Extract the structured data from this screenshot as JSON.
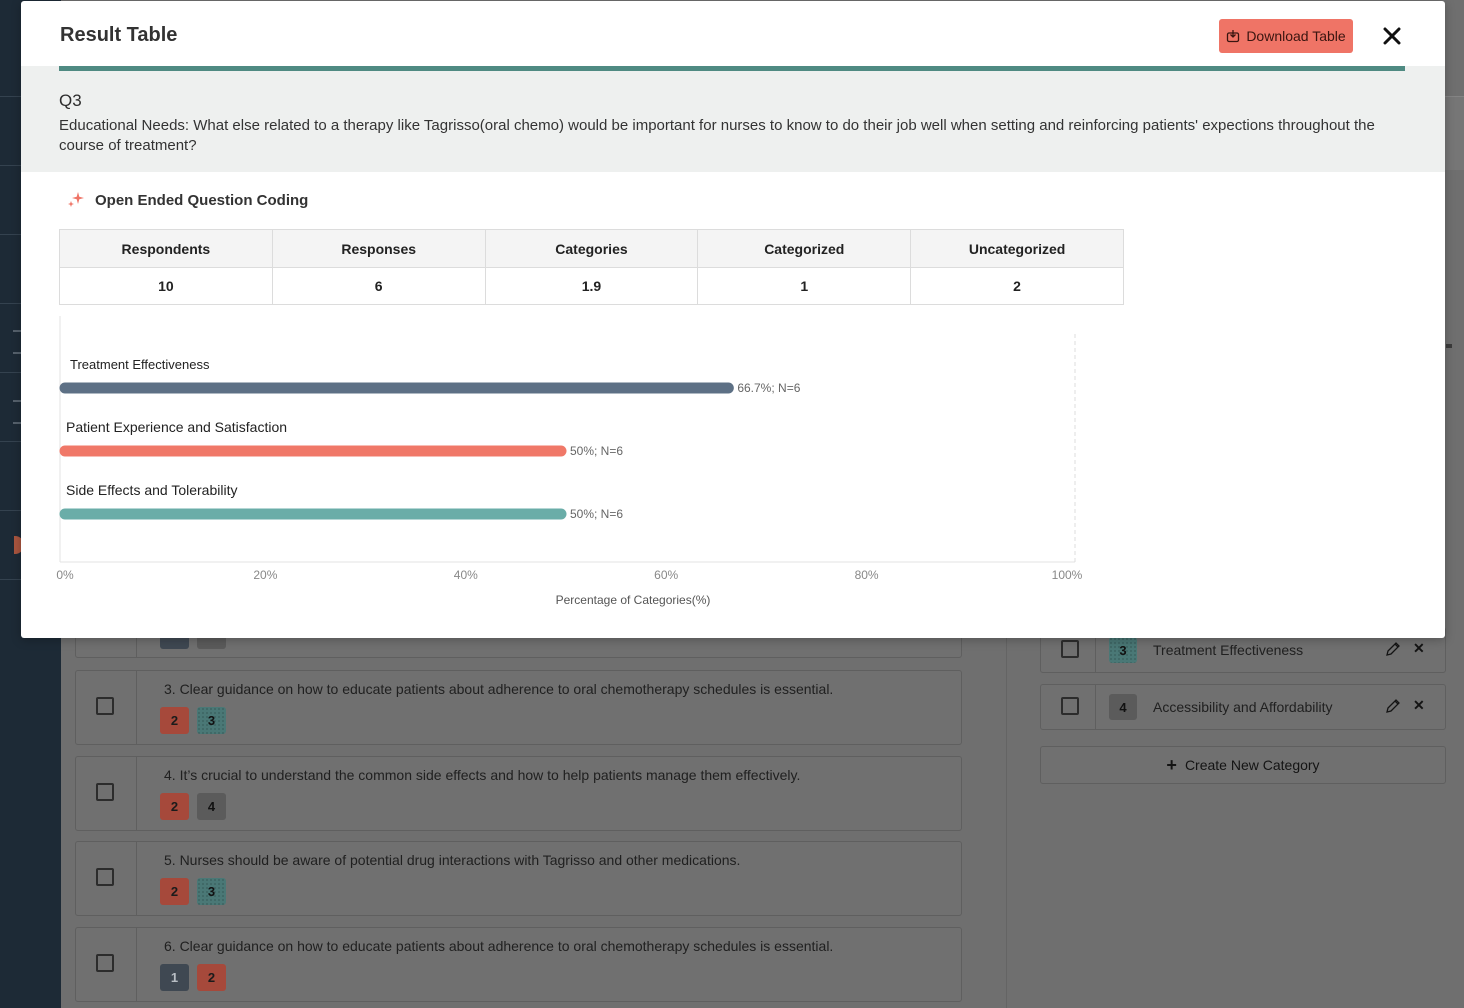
{
  "background": {
    "responses": [
      {
        "text": "3. Clear guidance on how to educate patients about adherence to oral chemotherapy schedules is essential.",
        "tags": [
          "2",
          "3"
        ]
      },
      {
        "text": "4. It’s crucial to understand the common side effects and how to help patients manage them effectively.",
        "tags": [
          "2",
          "4"
        ]
      },
      {
        "text": "5. Nurses should be aware of potential drug interactions with Tagrisso and other medications.",
        "tags": [
          "2",
          "3"
        ]
      },
      {
        "text": "6. Clear guidance on how to educate patients about adherence to oral chemotherapy schedules is essential.",
        "tags": [
          "1",
          "2"
        ]
      }
    ],
    "categories": [
      {
        "number": "3",
        "name": "Treatment Effectiveness"
      },
      {
        "number": "4",
        "name": "Accessibility and Affordability"
      }
    ],
    "create_category_label": "Create New Category"
  },
  "modal": {
    "title": "Result Table",
    "download_label": "Download Table",
    "question_label": "Q3",
    "question_text": "Educational Needs: What else related to a therapy like Tagrisso(oral chemo) would be important for nurses to know to do their job well when setting and reinforcing patients' expections throughout the course of treatment?",
    "section_title": "Open Ended Question Coding",
    "stats": {
      "headers": [
        "Respondents",
        "Responses",
        "Categories",
        "Categorized",
        "Uncategorized"
      ],
      "values": [
        "10",
        "6",
        "1.9",
        "1",
        "2"
      ]
    }
  },
  "colors": {
    "accent_teal": "#4f8a82",
    "download_button": "#ef7466",
    "series": [
      "#5d7085",
      "#f07868",
      "#6aada8"
    ],
    "tag_1": "#3f4852",
    "tag_2": "#a6493b",
    "tag_3": "#4a7876",
    "tag_4": "#5b5b5b"
  },
  "icons": {
    "download": "download-icon",
    "close": "close-icon",
    "sparkle": "sparkle-icon",
    "edit": "pencil-icon",
    "delete": "x-icon",
    "add": "plus-icon"
  },
  "chart_data": {
    "type": "bar",
    "orientation": "horizontal",
    "categories": [
      "Treatment Effectiveness",
      "Patient Experience and Satisfaction",
      "Side Effects and Tolerability"
    ],
    "values": [
      66.7,
      50,
      50
    ],
    "data_labels": [
      "66.7%; N=6",
      "50%; N=6",
      "50%; N=6"
    ],
    "xlabel": "Percentage of Categories(%)",
    "xlim": [
      0,
      100
    ],
    "xticks": [
      "0%",
      "20%",
      "40%",
      "60%",
      "80%",
      "100%"
    ],
    "grid": false
  }
}
